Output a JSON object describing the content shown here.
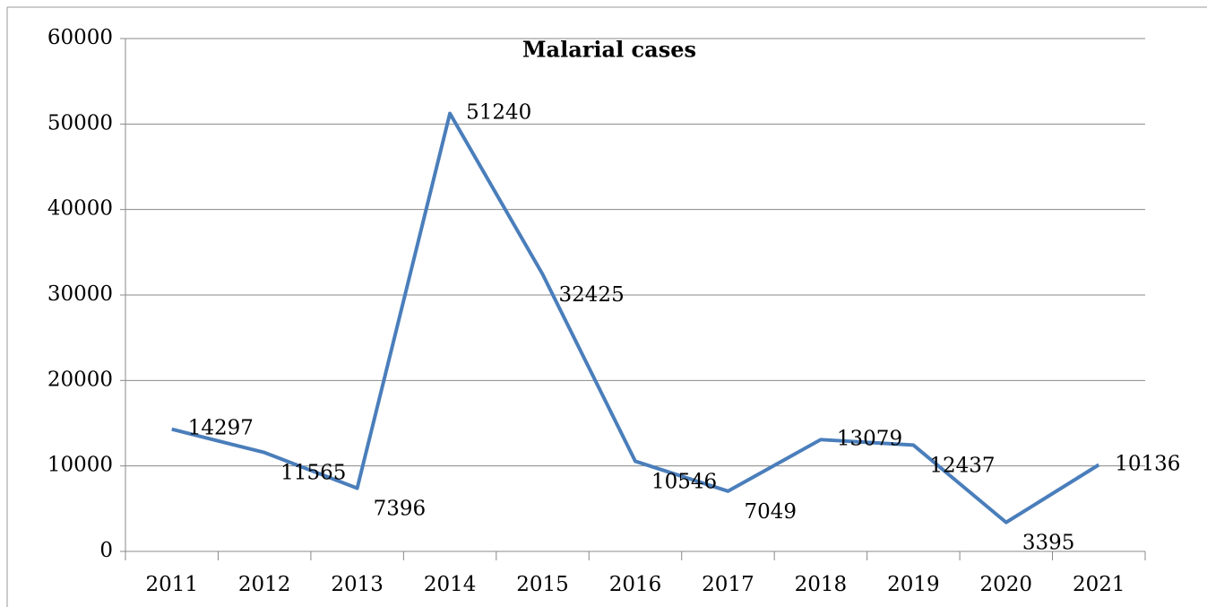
{
  "chart_data": {
    "type": "line",
    "title": "Malarial cases",
    "categories": [
      "2011",
      "2012",
      "2013",
      "2014",
      "2015",
      "2016",
      "2017",
      "2018",
      "2019",
      "2020",
      "2021"
    ],
    "series": [
      {
        "name": "Malarial cases",
        "color": "#4a7ebb",
        "values": [
          14297,
          11565,
          7396,
          51240,
          32425,
          10546,
          7049,
          13079,
          12437,
          3395,
          10136
        ]
      }
    ],
    "ylim": [
      0,
      60000
    ],
    "yticks": [
      0,
      10000,
      20000,
      30000,
      40000,
      50000,
      60000
    ],
    "grid": true
  }
}
